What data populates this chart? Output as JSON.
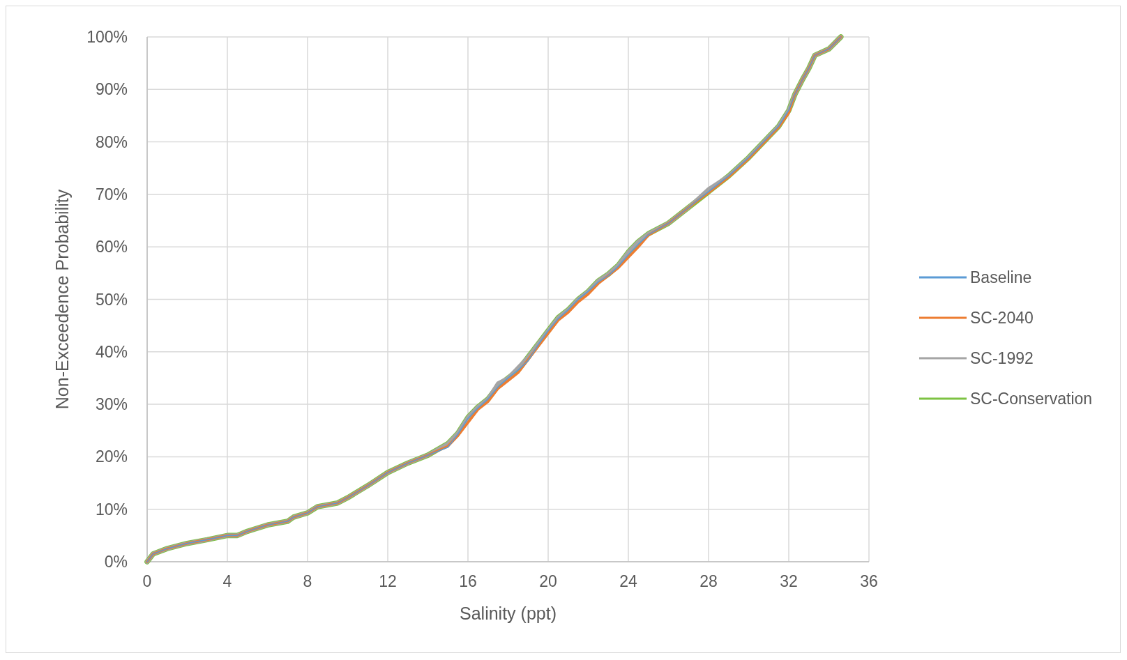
{
  "chart_data": {
    "type": "line",
    "xlabel": "Salinity (ppt)",
    "ylabel": "Non-Exceedence Probability",
    "x": [
      0,
      0.3,
      1,
      2,
      3,
      4,
      4.5,
      5,
      6,
      7,
      7.3,
      8,
      8.5,
      9.5,
      10,
      11,
      12,
      13,
      14,
      15,
      15.5,
      16,
      16.5,
      17,
      17.5,
      18,
      18.5,
      19,
      19.5,
      20,
      20.5,
      21,
      21.5,
      22,
      22.5,
      23,
      23.5,
      24,
      24.5,
      25,
      26,
      27,
      28,
      29,
      30,
      31,
      31.5,
      32,
      32.3,
      32.7,
      33,
      33.3,
      34,
      34.6
    ],
    "series": [
      {
        "name": "Baseline",
        "color": "#5b9bd5",
        "values": [
          0,
          1.5,
          2.5,
          3.5,
          4.2,
          5,
          5,
          5.8,
          7,
          7.7,
          8.5,
          9.3,
          10.5,
          11.2,
          12.2,
          14.5,
          17,
          18.8,
          20.3,
          21.8,
          24.3,
          27.3,
          29.3,
          31,
          33.3,
          35,
          36.5,
          38.3,
          41.3,
          44,
          46.3,
          48,
          50,
          51.5,
          53.3,
          54.5,
          56.3,
          58.5,
          60.5,
          62.3,
          64.5,
          67.5,
          70.5,
          73.5,
          77,
          81,
          83,
          86,
          89,
          92,
          94,
          96.5,
          97.7,
          100
        ]
      },
      {
        "name": "SC-2040",
        "color": "#ed7d31",
        "values": [
          0,
          1.5,
          2.5,
          3.5,
          4.2,
          5,
          5,
          5.8,
          7,
          7.7,
          8.5,
          9.3,
          10.5,
          11.2,
          12.2,
          14.5,
          17,
          18.8,
          20.3,
          22,
          24,
          26.5,
          29,
          30.5,
          33,
          34.5,
          36,
          38.5,
          41,
          43.5,
          46,
          47.5,
          49.5,
          51,
          53,
          54.5,
          56,
          58,
          60,
          62.2,
          64.5,
          67.5,
          70.3,
          73.3,
          76.8,
          80.8,
          82.8,
          85.5,
          89,
          92,
          94,
          96.5,
          97.7,
          100
        ]
      },
      {
        "name": "SC-1992",
        "color": "#a5a5a5",
        "values": [
          0,
          1.5,
          2.5,
          3.5,
          4.2,
          5,
          5,
          5.8,
          7,
          7.7,
          8.5,
          9.3,
          10.5,
          11.2,
          12.2,
          14.5,
          17,
          18.8,
          20.3,
          22.5,
          24.5,
          27.5,
          29.5,
          31,
          34,
          35,
          37,
          39,
          41.5,
          44,
          46.5,
          48,
          50,
          51.5,
          53.5,
          54.8,
          56.5,
          59,
          61,
          62.5,
          64.5,
          67.5,
          71,
          73.5,
          77,
          81,
          83,
          86,
          89,
          92,
          94,
          96.5,
          97.7,
          100
        ]
      },
      {
        "name": "SC-Conservation",
        "color": "#7dc242",
        "values": [
          0,
          1.5,
          2.5,
          3.5,
          4.2,
          5,
          5,
          5.8,
          7,
          7.7,
          8.5,
          9.3,
          10.5,
          11.2,
          12.2,
          14.5,
          17,
          18.8,
          20.3,
          22.5,
          24.5,
          27.5,
          29.5,
          31,
          33.5,
          35,
          36.5,
          39,
          41.5,
          44,
          46.5,
          48,
          50,
          51.5,
          53.5,
          54.8,
          56.5,
          59,
          61,
          62.5,
          64.5,
          67.5,
          70.5,
          73.5,
          77,
          81,
          83,
          86,
          89,
          92,
          94,
          96.5,
          97.7,
          100
        ]
      }
    ],
    "xlim": [
      0,
      36
    ],
    "xticks": [
      0,
      4,
      8,
      12,
      16,
      20,
      24,
      28,
      32,
      36
    ],
    "ylim": [
      0,
      100
    ],
    "yticks": [
      {
        "value": 0,
        "label": "0%"
      },
      {
        "value": 10,
        "label": "10%"
      },
      {
        "value": 20,
        "label": "20%"
      },
      {
        "value": 30,
        "label": "30%"
      },
      {
        "value": 40,
        "label": "40%"
      },
      {
        "value": 50,
        "label": "50%"
      },
      {
        "value": 60,
        "label": "60%"
      },
      {
        "value": 70,
        "label": "70%"
      },
      {
        "value": 80,
        "label": "80%"
      },
      {
        "value": 90,
        "label": "90%"
      },
      {
        "value": 100,
        "label": "100%"
      }
    ],
    "grid": true,
    "legend": "right",
    "line_style": "solid",
    "marker": "none"
  }
}
